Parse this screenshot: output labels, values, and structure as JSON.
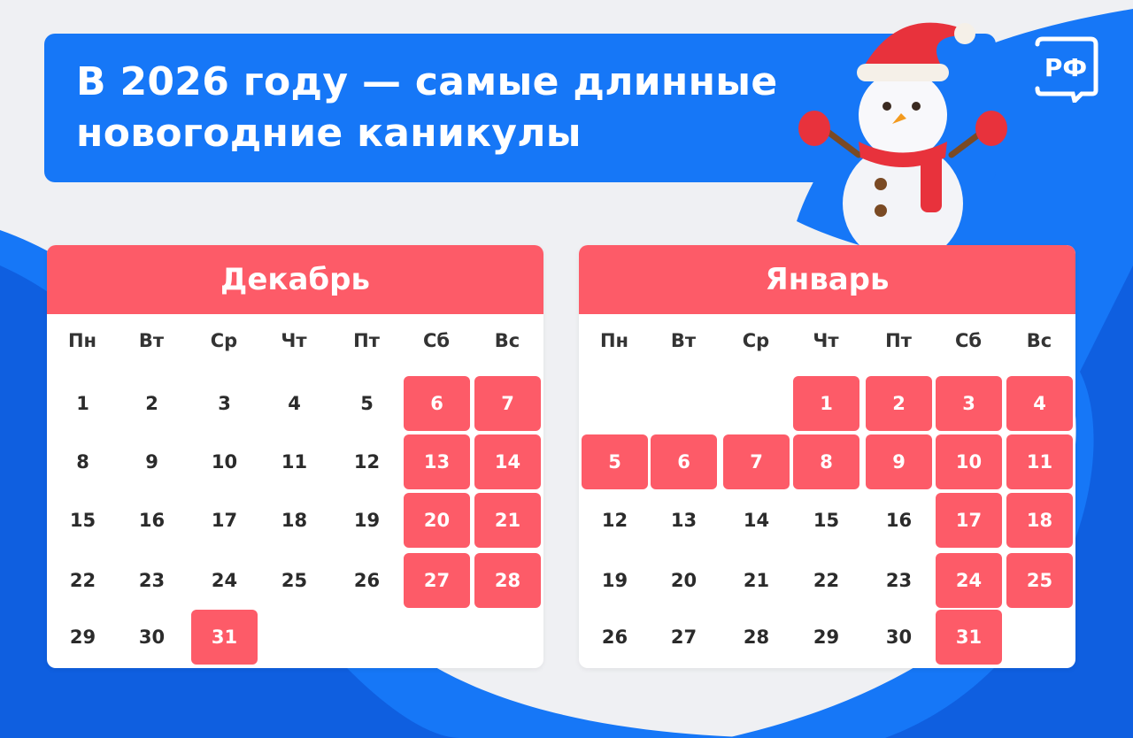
{
  "title_lines": [
    "В 2026 году — самые длинные",
    "новогодние каникулы"
  ],
  "logo_text": "РФ",
  "colors": {
    "blue": "#1677f7",
    "red": "#fd5b68",
    "bg": "#eff0f3"
  },
  "weekdays": [
    "Пн",
    "Вт",
    "Ср",
    "Чт",
    "Пт",
    "Сб",
    "Вс"
  ],
  "months": [
    {
      "name": "Декабрь",
      "start_weekday": 1,
      "days": 31,
      "holidays": [
        6,
        7,
        13,
        14,
        20,
        21,
        27,
        28,
        31
      ]
    },
    {
      "name": "Январь",
      "start_weekday": 4,
      "days": 31,
      "holidays": [
        1,
        2,
        3,
        4,
        5,
        6,
        7,
        8,
        9,
        10,
        11,
        17,
        18,
        24,
        25,
        31
      ]
    }
  ]
}
